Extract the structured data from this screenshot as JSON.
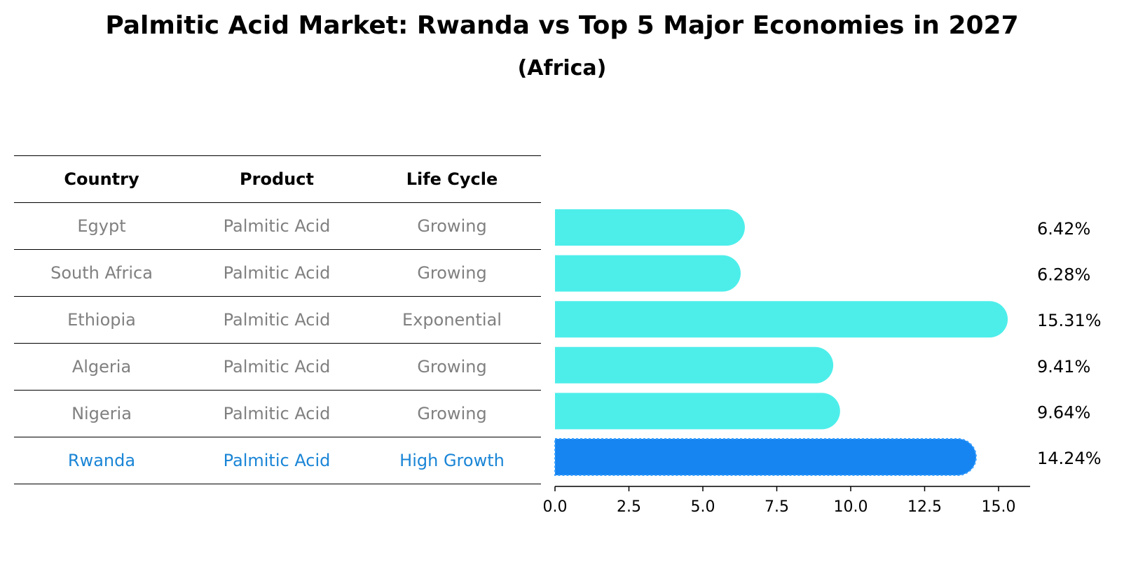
{
  "chart_data": {
    "type": "bar",
    "orientation": "horizontal",
    "title": "Palmitic Acid Market: Rwanda vs Top 5 Major Economies in 2027",
    "subtitle": "(Africa)",
    "columns": [
      "Country",
      "Product",
      "Life Cycle"
    ],
    "rows": [
      {
        "country": "Egypt",
        "product": "Palmitic Acid",
        "life_cycle": "Growing",
        "value": 6.42,
        "label": "6.42%",
        "highlight": false
      },
      {
        "country": "South Africa",
        "product": "Palmitic Acid",
        "life_cycle": "Growing",
        "value": 6.28,
        "label": "6.28%",
        "highlight": false
      },
      {
        "country": "Ethiopia",
        "product": "Palmitic Acid",
        "life_cycle": "Exponential",
        "value": 15.31,
        "label": "15.31%",
        "highlight": false
      },
      {
        "country": "Algeria",
        "product": "Palmitic Acid",
        "life_cycle": "Growing",
        "value": 9.41,
        "label": "9.41%",
        "highlight": false
      },
      {
        "country": "Nigeria",
        "product": "Palmitic Acid",
        "life_cycle": "Growing",
        "value": 9.64,
        "label": "9.64%",
        "highlight": false
      },
      {
        "country": "Rwanda",
        "product": "Palmitic Acid",
        "life_cycle": "High Growth",
        "value": 14.24,
        "label": "14.24%",
        "highlight": true
      }
    ],
    "xlim": [
      0,
      16
    ],
    "xticks": [
      0.0,
      2.5,
      5.0,
      7.5,
      10.0,
      12.5,
      15.0
    ],
    "xtick_labels": [
      "0.0",
      "2.5",
      "5.0",
      "7.5",
      "10.0",
      "12.5",
      "15.0"
    ],
    "colors": {
      "bar": "#4deeea",
      "highlight_bar": "#1685f2",
      "highlight_text": "#1a85d6",
      "muted_text": "#808080"
    }
  }
}
